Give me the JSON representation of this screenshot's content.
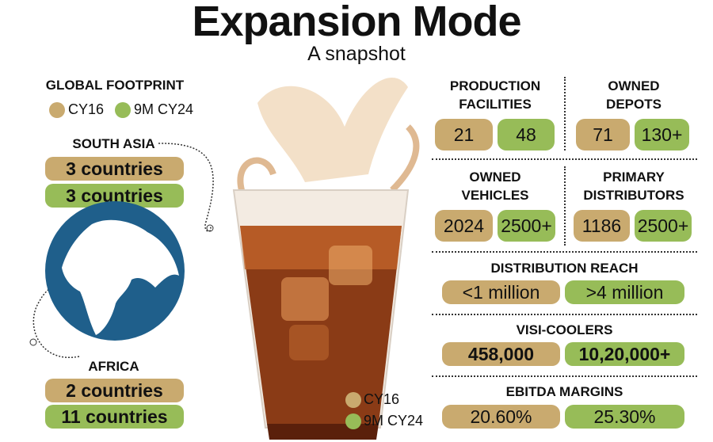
{
  "header": {
    "title": "Expansion Mode",
    "subtitle": "A snapshot"
  },
  "colors": {
    "cy16": "#c9aa6f",
    "cy24": "#97bc58",
    "globe": "#1f5f8b"
  },
  "legend": {
    "cy16": "CY16",
    "cy24": "9M CY24"
  },
  "global": {
    "title": "GLOBAL FOOTPRINT",
    "south_asia": {
      "label": "SOUTH ASIA",
      "cy16": "3 countries",
      "cy24": "3 countries"
    },
    "africa": {
      "label": "AFRICA",
      "cy16": "2 countries",
      "cy24": "11 countries"
    }
  },
  "metrics": {
    "production": {
      "line1": "PRODUCTION",
      "line2": "FACILITIES",
      "cy16": "21",
      "cy24": "48"
    },
    "depots": {
      "line1": "OWNED",
      "line2": "DEPOTS",
      "cy16": "71",
      "cy24": "130+"
    },
    "vehicles": {
      "line1": "OWNED",
      "line2": "VEHICLES",
      "cy16": "2024",
      "cy24": "2500+"
    },
    "distributors": {
      "line1": "PRIMARY",
      "line2": "DISTRIBUTORS",
      "cy16": "1186",
      "cy24": "2500+"
    },
    "reach": {
      "label": "DISTRIBUTION REACH",
      "cy16": "<1 million",
      "cy24": ">4 million"
    },
    "coolers": {
      "label": "VISI-COOLERS",
      "cy16": "458,000",
      "cy24": "10,20,000+"
    },
    "ebitda": {
      "label": "EBITDA MARGINS",
      "cy16": "20.60%",
      "cy24": "25.30%"
    }
  }
}
